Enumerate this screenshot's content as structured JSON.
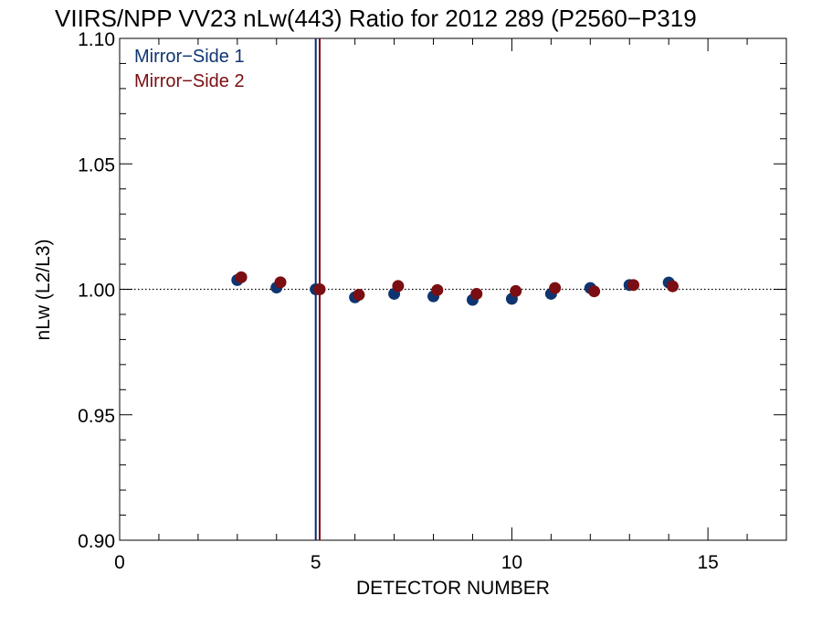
{
  "chart_data": {
    "type": "scatter",
    "title": "VIIRS/NPP VV23 nLw(443) Ratio for 2012 289 (P2560−P319",
    "xlabel": "DETECTOR NUMBER",
    "ylabel": "nLw (L2/L3)",
    "xlim": [
      0,
      17
    ],
    "ylim": [
      0.9,
      1.1
    ],
    "x_ticks": [
      0,
      5,
      10,
      15
    ],
    "x_tick_labels": [
      "0",
      "5",
      "10",
      "15"
    ],
    "y_ticks": [
      0.9,
      0.95,
      1.0,
      1.05,
      1.1
    ],
    "y_tick_labels": [
      "0.90",
      "0.95",
      "1.00",
      "1.05",
      "1.10"
    ],
    "reference_line": {
      "y": 1.0,
      "style": "dotted"
    },
    "vertical_lines": [
      {
        "x": 5.0,
        "color": "#0a2a6b"
      },
      {
        "x": 5.1,
        "color": "#7a0a12"
      }
    ],
    "legend": {
      "position": "top-left",
      "entries": [
        "Mirror−Side 1",
        "Mirror−Side 2"
      ]
    },
    "series": [
      {
        "name": "Mirror−Side 1",
        "color": "#0f3570",
        "x": [
          3,
          4,
          5,
          6,
          7,
          8,
          9,
          10,
          11,
          12,
          13,
          14
        ],
        "y": [
          1.0037,
          1.0007,
          1.0,
          0.9968,
          0.9982,
          0.9972,
          0.9958,
          0.9962,
          0.9982,
          1.0005,
          1.0017,
          1.0027
        ]
      },
      {
        "name": "Mirror−Side 2",
        "color": "#7a0e12",
        "x": [
          3.1,
          4.1,
          5.1,
          6.1,
          7.1,
          8.1,
          9.1,
          10.1,
          11.1,
          12.1,
          13.1,
          14.1
        ],
        "y": [
          1.0048,
          1.0028,
          1.0,
          0.9978,
          1.0013,
          0.9997,
          0.9982,
          0.9993,
          1.0005,
          0.9992,
          1.0017,
          1.0012
        ]
      }
    ]
  }
}
